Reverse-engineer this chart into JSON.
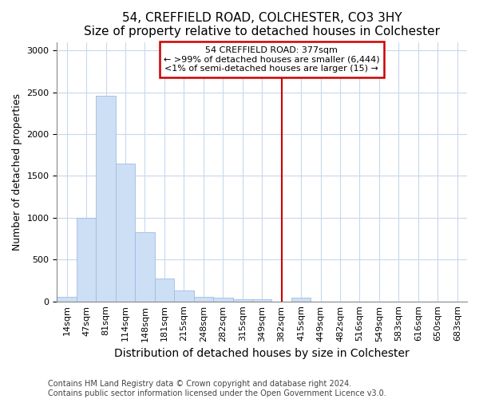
{
  "title": "54, CREFFIELD ROAD, COLCHESTER, CO3 3HY",
  "subtitle": "Size of property relative to detached houses in Colchester",
  "xlabel": "Distribution of detached houses by size in Colchester",
  "ylabel": "Number of detached properties",
  "bar_labels": [
    "14sqm",
    "47sqm",
    "81sqm",
    "114sqm",
    "148sqm",
    "181sqm",
    "215sqm",
    "248sqm",
    "282sqm",
    "315sqm",
    "349sqm",
    "382sqm",
    "415sqm",
    "449sqm",
    "482sqm",
    "516sqm",
    "549sqm",
    "583sqm",
    "616sqm",
    "650sqm",
    "683sqm"
  ],
  "bar_values": [
    55,
    1000,
    2460,
    1650,
    830,
    270,
    130,
    50,
    40,
    30,
    25,
    0,
    40,
    0,
    0,
    0,
    0,
    0,
    0,
    0,
    0
  ],
  "bar_color": "#cddff5",
  "bar_edge_color": "#a0bce0",
  "vline_index": 11,
  "vline_color": "#cc0000",
  "annotation_text": "54 CREFFIELD ROAD: 377sqm\n← >99% of detached houses are smaller (6,444)\n<1% of semi-detached houses are larger (15) →",
  "annotation_box_color": "#cc0000",
  "annotation_bg": "white",
  "ylim": [
    0,
    3100
  ],
  "yticks": [
    0,
    500,
    1000,
    1500,
    2000,
    2500,
    3000
  ],
  "footnote": "Contains HM Land Registry data © Crown copyright and database right 2024.\nContains public sector information licensed under the Open Government Licence v3.0.",
  "fig_bg_color": "white",
  "plot_bg_color": "white",
  "grid_color": "#c8d8ee",
  "title_fontsize": 11,
  "ylabel_fontsize": 9,
  "xlabel_fontsize": 10,
  "tick_fontsize": 8,
  "annot_fontsize": 8,
  "footnote_fontsize": 7
}
